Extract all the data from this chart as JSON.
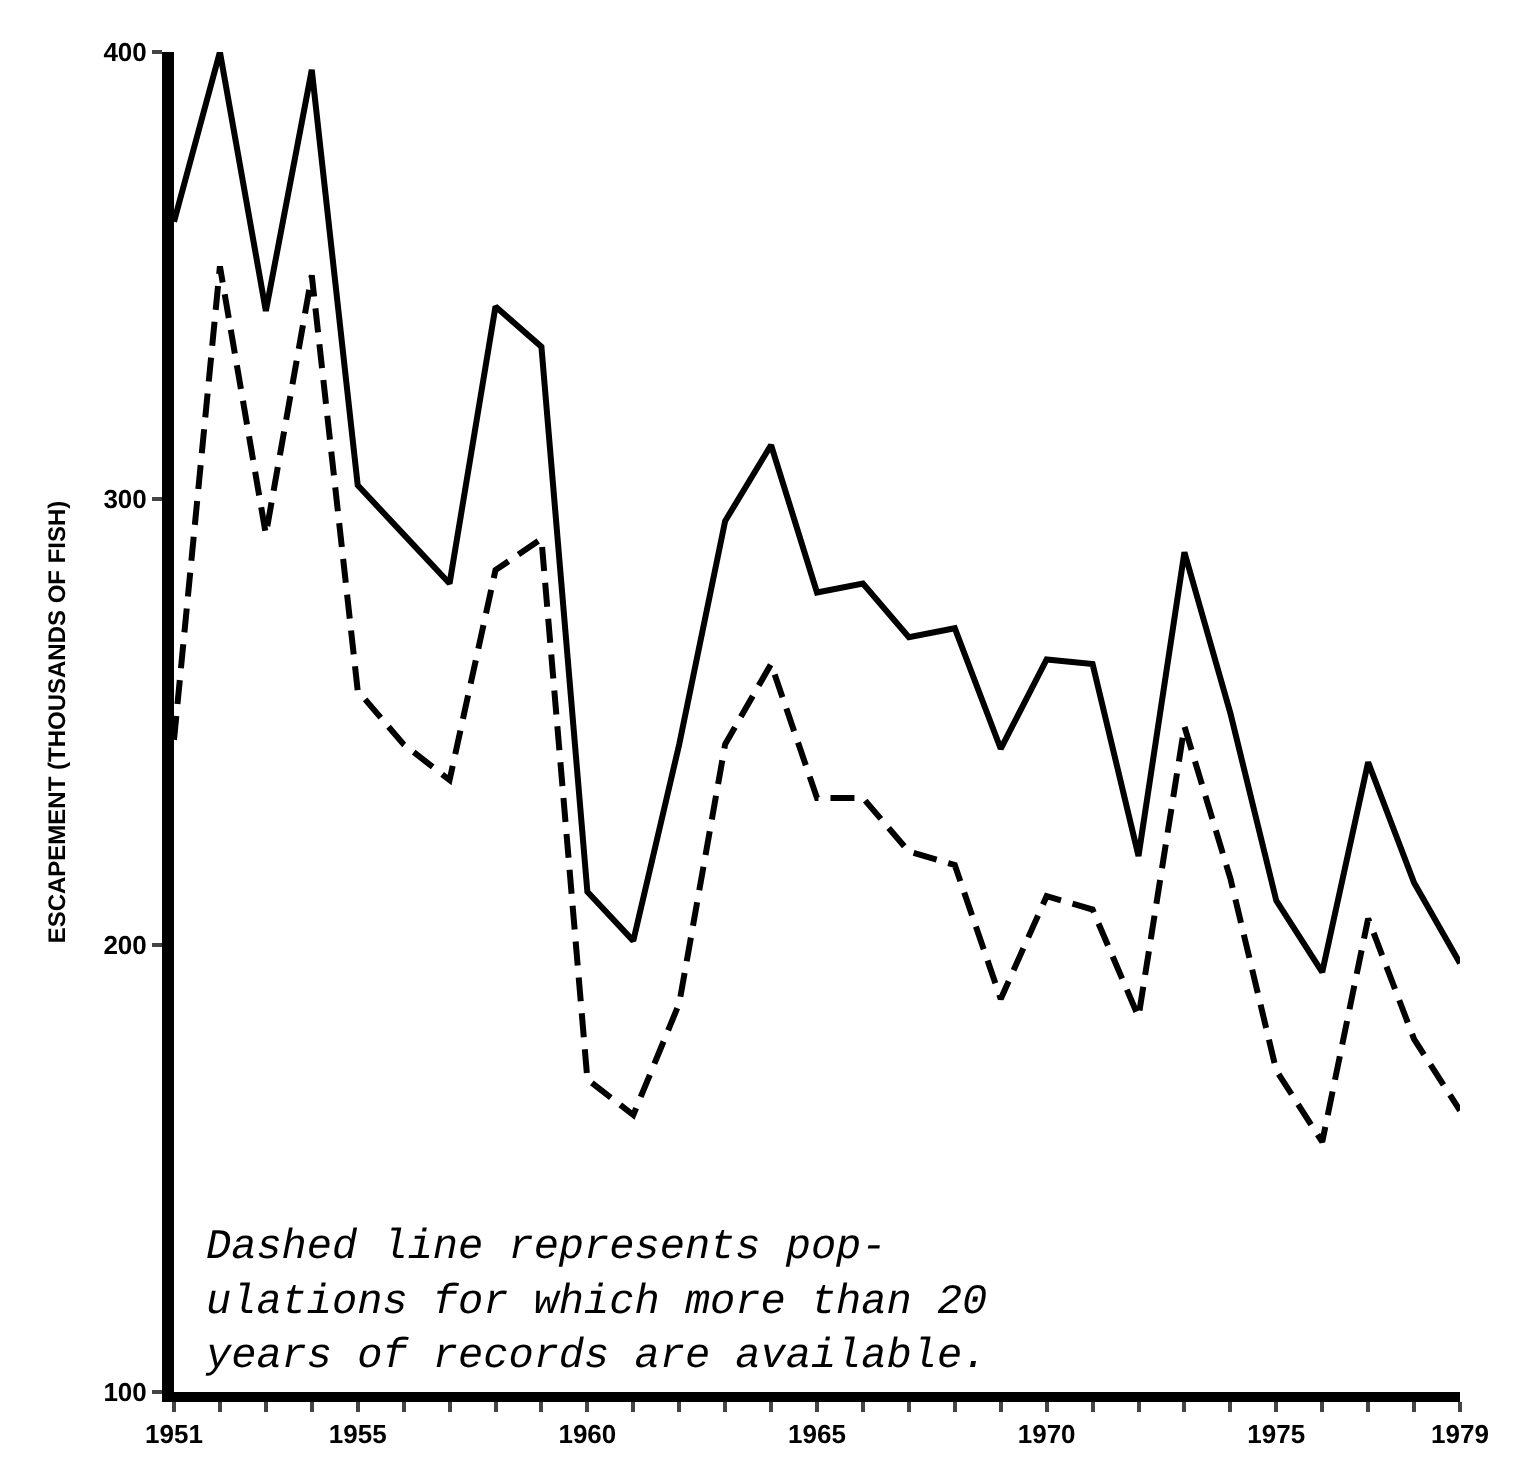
{
  "chart_data": {
    "type": "line",
    "ylabel": "ESCAPEMENT (THOUSANDS OF FISH)",
    "x": [
      1951,
      1952,
      1953,
      1954,
      1955,
      1956,
      1957,
      1958,
      1959,
      1960,
      1961,
      1962,
      1963,
      1964,
      1965,
      1966,
      1967,
      1968,
      1969,
      1970,
      1971,
      1972,
      1973,
      1974,
      1975,
      1976,
      1977,
      1978,
      1979
    ],
    "series": [
      {
        "color": "#000000",
        "line_style": "solid",
        "values": [
          362,
          400,
          342,
          396,
          303,
          292,
          281,
          343,
          334,
          212,
          201,
          245,
          295,
          312,
          279,
          281,
          269,
          271,
          244,
          264,
          263,
          220,
          288,
          252,
          210,
          194,
          241,
          214,
          196
        ]
      },
      {
        "color": "#000000",
        "line_style": "dashed",
        "values": [
          246,
          352,
          292,
          350,
          257,
          245,
          237,
          284,
          291,
          170,
          162,
          187,
          245,
          263,
          233,
          233,
          221,
          218,
          188,
          211,
          208,
          184,
          249,
          215,
          172,
          156,
          206,
          179,
          163
        ]
      }
    ],
    "xlim": [
      1951,
      1979
    ],
    "ylim": [
      100,
      400
    ],
    "xticks": [
      1951,
      {
        "value": 1952,
        "label": null
      },
      {
        "value": 1953,
        "label": null
      },
      {
        "value": 1954,
        "label": null
      },
      1955,
      {
        "value": 1956,
        "label": null
      },
      {
        "value": 1957,
        "label": null
      },
      {
        "value": 1958,
        "label": null
      },
      {
        "value": 1959,
        "label": null
      },
      1960,
      {
        "value": 1961,
        "label": null
      },
      {
        "value": 1962,
        "label": null
      },
      {
        "value": 1963,
        "label": null
      },
      {
        "value": 1964,
        "label": null
      },
      1965,
      {
        "value": 1966,
        "label": null
      },
      {
        "value": 1967,
        "label": null
      },
      {
        "value": 1968,
        "label": null
      },
      {
        "value": 1969,
        "label": null
      },
      1970,
      {
        "value": 1971,
        "label": null
      },
      {
        "value": 1972,
        "label": null
      },
      {
        "value": 1973,
        "label": null
      },
      {
        "value": 1974,
        "label": null
      },
      1975,
      {
        "value": 1976,
        "label": null
      },
      {
        "value": 1977,
        "label": null
      },
      {
        "value": 1978,
        "label": null
      },
      1979
    ],
    "yticks": [
      100,
      200,
      300,
      400
    ],
    "annotations": [
      "Dashed line represents pop-\nulations for which more than 20\nyears of records are available."
    ],
    "grid": false,
    "marker": "none"
  }
}
